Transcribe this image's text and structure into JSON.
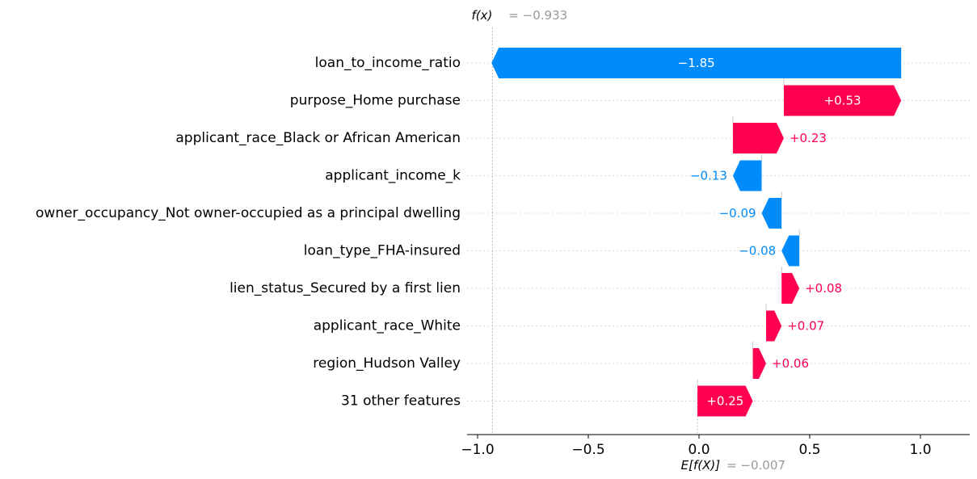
{
  "chart_data": {
    "type": "waterfall",
    "base_value": -0.007,
    "output_value": -0.933,
    "fx_label": "f(x)",
    "fx_value_text": "= −0.933",
    "efx_label": "E[f(X)]",
    "efx_value_text": "= −0.007",
    "features": [
      {
        "name": "loan_to_income_ratio",
        "value": -1.85,
        "label": "−1.85"
      },
      {
        "name": "purpose_Home purchase",
        "value": 0.53,
        "label": "+0.53"
      },
      {
        "name": "applicant_race_Black or African American",
        "value": 0.23,
        "label": "+0.23"
      },
      {
        "name": "applicant_income_k",
        "value": -0.13,
        "label": "−0.13"
      },
      {
        "name": "owner_occupancy_Not owner-occupied as a principal dwelling",
        "value": -0.09,
        "label": "−0.09"
      },
      {
        "name": "loan_type_FHA-insured",
        "value": -0.08,
        "label": "−0.08"
      },
      {
        "name": "lien_status_Secured by a first lien",
        "value": 0.08,
        "label": "+0.08"
      },
      {
        "name": "applicant_race_White",
        "value": 0.07,
        "label": "+0.07"
      },
      {
        "name": "region_Hudson Valley",
        "value": 0.06,
        "label": "+0.06"
      },
      {
        "name": "31 other features",
        "value": 0.25,
        "label": "+0.25"
      }
    ],
    "xticks": [
      -1.0,
      -0.5,
      0.0,
      0.5,
      1.0
    ],
    "xtick_labels": [
      "−1.0",
      "−0.5",
      "0.0",
      "0.5",
      "1.0"
    ],
    "xlim": [
      -1.05,
      1.22
    ],
    "colors": {
      "positive": "#ff0051",
      "negative": "#008bfb",
      "muted": "#999999"
    }
  }
}
